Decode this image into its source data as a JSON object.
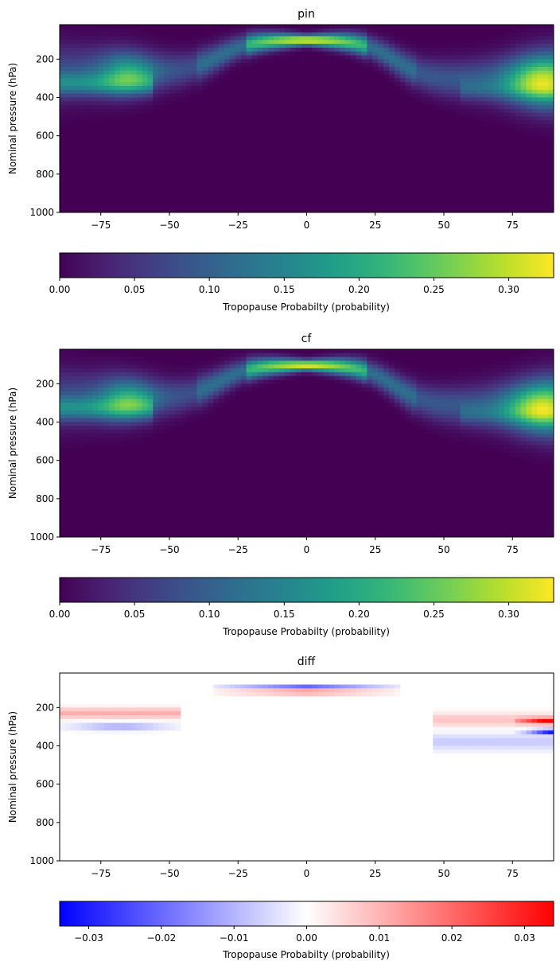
{
  "chart_data": [
    {
      "type": "heatmap",
      "title": "pin",
      "xlabel": "",
      "ylabel": "Nominal pressure (hPa)",
      "xlim": [
        -90,
        90
      ],
      "ylim": [
        1000,
        20
      ],
      "y_inverted": true,
      "xticks": [
        -75,
        -50,
        -25,
        0,
        25,
        50,
        75
      ],
      "yticks": [
        200,
        400,
        600,
        800,
        1000
      ],
      "colormap": "viridis",
      "colorbar": {
        "label": "Tropopause Probabilty (probability)",
        "vmin": 0,
        "vmax": 0.33,
        "ticks": [
          "0.00",
          "0.05",
          "0.10",
          "0.15",
          "0.20",
          "0.25",
          "0.30"
        ],
        "tick_values": [
          0,
          0.05,
          0.1,
          0.15,
          0.2,
          0.25,
          0.3
        ],
        "orientation": "horizontal"
      },
      "features": [
        {
          "lat_range": [
            -90,
            -50
          ],
          "pressure_center": 260,
          "peak_value": 0.2,
          "peak_lat": -65
        },
        {
          "lat_range": [
            -25,
            25
          ],
          "pressure_center": 100,
          "peak_value": 0.33,
          "peak_lat": 0
        },
        {
          "lat_range": [
            50,
            90
          ],
          "pressure_center": 300,
          "peak_value": 0.3,
          "peak_lat": 85
        }
      ]
    },
    {
      "type": "heatmap",
      "title": "cf",
      "xlabel": "",
      "ylabel": "Nominal pressure (hPa)",
      "xlim": [
        -90,
        90
      ],
      "ylim": [
        1000,
        20
      ],
      "y_inverted": true,
      "xticks": [
        -75,
        -50,
        -25,
        0,
        25,
        50,
        75
      ],
      "yticks": [
        200,
        400,
        600,
        800,
        1000
      ],
      "colormap": "viridis",
      "colorbar": {
        "label": "Tropopause Probabilty (probability)",
        "vmin": 0,
        "vmax": 0.33,
        "ticks": [
          "0.00",
          "0.05",
          "0.10",
          "0.15",
          "0.20",
          "0.25",
          "0.30"
        ],
        "tick_values": [
          0,
          0.05,
          0.1,
          0.15,
          0.2,
          0.25,
          0.3
        ],
        "orientation": "horizontal"
      },
      "features": [
        {
          "lat_range": [
            -90,
            -50
          ],
          "pressure_center": 270,
          "peak_value": 0.2,
          "peak_lat": -65
        },
        {
          "lat_range": [
            -25,
            25
          ],
          "pressure_center": 105,
          "peak_value": 0.33,
          "peak_lat": 0
        },
        {
          "lat_range": [
            50,
            90
          ],
          "pressure_center": 300,
          "peak_value": 0.3,
          "peak_lat": 85
        }
      ]
    },
    {
      "type": "heatmap",
      "title": "diff",
      "xlabel": "",
      "ylabel": "Nominal pressure (hPa)",
      "xlim": [
        -90,
        90
      ],
      "ylim": [
        1000,
        20
      ],
      "y_inverted": true,
      "xticks": [
        -75,
        -50,
        -25,
        0,
        25,
        50,
        75
      ],
      "yticks": [
        200,
        400,
        600,
        800,
        1000
      ],
      "colormap": "bwr",
      "colorbar": {
        "label": "Tropopause Probabilty (probability)",
        "vmin": -0.034,
        "vmax": 0.034,
        "ticks": [
          "−0.03",
          "−0.02",
          "−0.01",
          "0.00",
          "0.01",
          "0.02",
          "0.03"
        ],
        "tick_values": [
          -0.03,
          -0.02,
          -0.01,
          0,
          0.01,
          0.02,
          0.03
        ],
        "orientation": "horizontal"
      },
      "features": [
        {
          "lat_range": [
            -25,
            25
          ],
          "pressure_center": 90,
          "sign": "negative",
          "peak_value": -0.025
        },
        {
          "lat_range": [
            -25,
            25
          ],
          "pressure_center": 120,
          "sign": "positive",
          "peak_value": 0.02
        },
        {
          "lat_range": [
            -90,
            -50
          ],
          "pressure_center": 230,
          "sign": "positive",
          "peak_value": 0.01
        },
        {
          "lat_range": [
            -90,
            -50
          ],
          "pressure_center": 300,
          "sign": "negative",
          "peak_value": -0.012
        },
        {
          "lat_range": [
            75,
            90
          ],
          "pressure_center": 270,
          "sign": "positive",
          "peak_value": 0.034
        },
        {
          "lat_range": [
            75,
            90
          ],
          "pressure_center": 330,
          "sign": "negative",
          "peak_value": -0.034
        }
      ]
    }
  ]
}
